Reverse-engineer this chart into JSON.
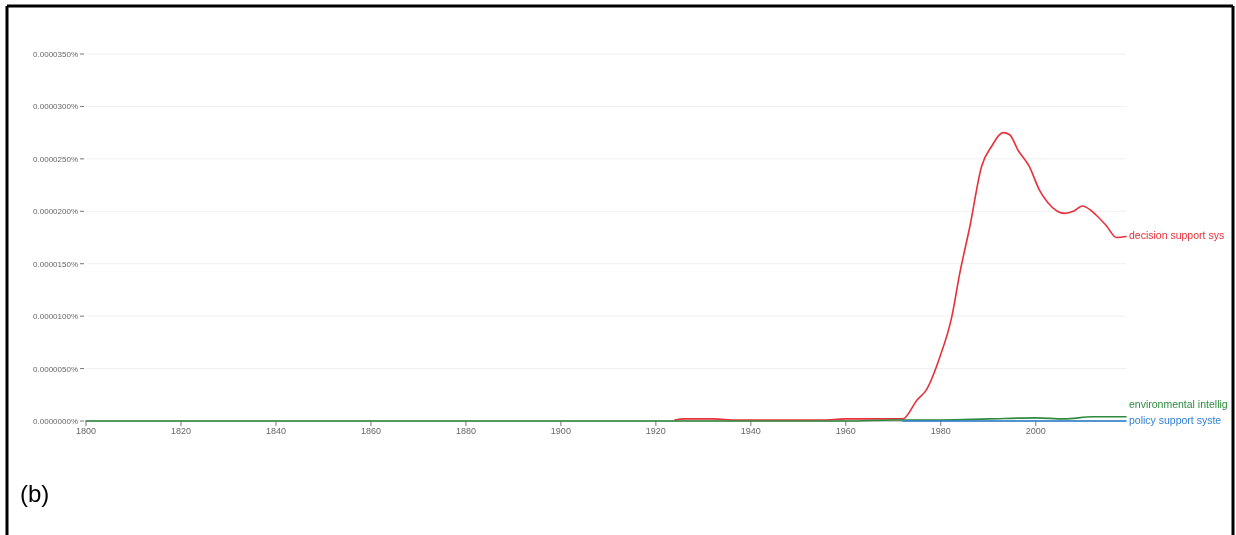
{
  "chart_data": {
    "type": "line",
    "x": [
      1924,
      1926,
      1932,
      1937,
      1945,
      1950,
      1955,
      1960,
      1963,
      1966,
      1969,
      1972,
      1975,
      1977,
      1979.8,
      1982.3,
      1984,
      1986.1,
      1988.6,
      1990.7,
      1993.1,
      1994.5,
      1996.3,
      1998.6,
      2000.8,
      2002.6,
      2006.1,
      2007.9,
      2009.8,
      2012.8,
      2014.9,
      2017,
      2019
    ],
    "series": [
      {
        "name": "decision support sys",
        "color": "#e8303a",
        "values": [
          1e-07,
          2e-07,
          2e-07,
          1e-07,
          1e-07,
          1e-07,
          1e-07,
          2e-07,
          2e-07,
          2e-07,
          2e-07,
          2e-07,
          2e-06,
          3e-06,
          6.1e-06,
          9.9e-06,
          1.41e-05,
          1.85e-05,
          2.43e-05,
          2.62e-05,
          2.75e-05,
          2.73e-05,
          2.58e-05,
          2.43e-05,
          2.2e-05,
          2.08e-05,
          1.98e-05,
          2e-05,
          2.05e-05,
          1.96e-05,
          1.86e-05,
          1.75e-05,
          1.76e-05
        ]
      },
      {
        "name": "environmental intellig",
        "color": "#2e8b3e",
        "x": [
          1800,
          1960,
          1970,
          1980,
          1990,
          2000,
          2006,
          2012,
          2019
        ],
        "values": [
          0,
          0,
          1e-07,
          1e-07,
          2e-07,
          3e-07,
          2e-07,
          4e-07,
          4e-07
        ]
      },
      {
        "name": "policy support syste",
        "color": "#2f80d6",
        "x": [
          1972,
          1980,
          2000,
          2019
        ],
        "values": [
          0,
          0,
          0,
          0
        ]
      }
    ],
    "xlim": [
      1800,
      2019
    ],
    "xticks": [
      1800,
      1820,
      1840,
      1860,
      1880,
      1900,
      1920,
      1940,
      1960,
      1980,
      2000
    ],
    "ylim": [
      0,
      3.5e-05
    ],
    "yticks": [
      {
        "value": 0,
        "label": "0.0000000%"
      },
      {
        "value": 5e-06,
        "label": "0.0000050%"
      },
      {
        "value": 1e-05,
        "label": "0.0000100%"
      },
      {
        "value": 1.5e-05,
        "label": "0.0000150%"
      },
      {
        "value": 2e-05,
        "label": "0.0000200%"
      },
      {
        "value": 2.5e-05,
        "label": "0.0000250%"
      },
      {
        "value": 3e-05,
        "label": "0.0000300%"
      },
      {
        "value": 3.5e-05,
        "label": "0.0000350%"
      }
    ],
    "grid": "y",
    "marker": "none",
    "line_style": "solid",
    "annotations": [
      "(b)"
    ]
  }
}
